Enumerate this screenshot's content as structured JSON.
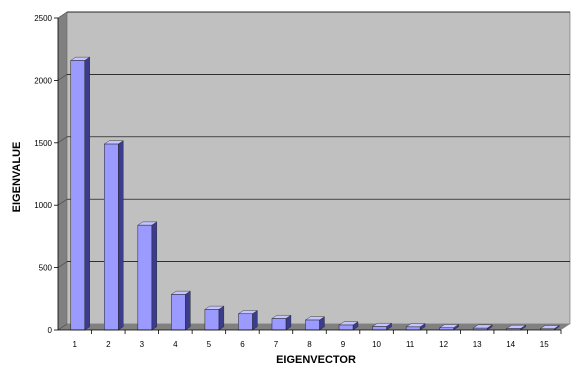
{
  "chart_data": {
    "type": "bar",
    "title": "",
    "xlabel": "EIGENVECTOR",
    "ylabel": "EIGENVALUE",
    "categories": [
      "1",
      "2",
      "3",
      "4",
      "5",
      "6",
      "7",
      "8",
      "9",
      "10",
      "11",
      "12",
      "13",
      "14",
      "15"
    ],
    "values": [
      2160,
      1490,
      840,
      285,
      165,
      130,
      92,
      80,
      40,
      28,
      25,
      18,
      15,
      12,
      10
    ],
    "ylim": [
      0,
      2500
    ],
    "yticks": [
      0,
      500,
      1000,
      1500,
      2000,
      2500
    ],
    "grid": true,
    "legend": "none",
    "style": "3d",
    "colors": {
      "bar_front": "#9a9aff",
      "bar_side": "#3c3c8c",
      "bar_top": "#c4c4ff",
      "plot_wall": "#c0c0c0",
      "floor": "#808080",
      "gridline": "#000000"
    }
  }
}
